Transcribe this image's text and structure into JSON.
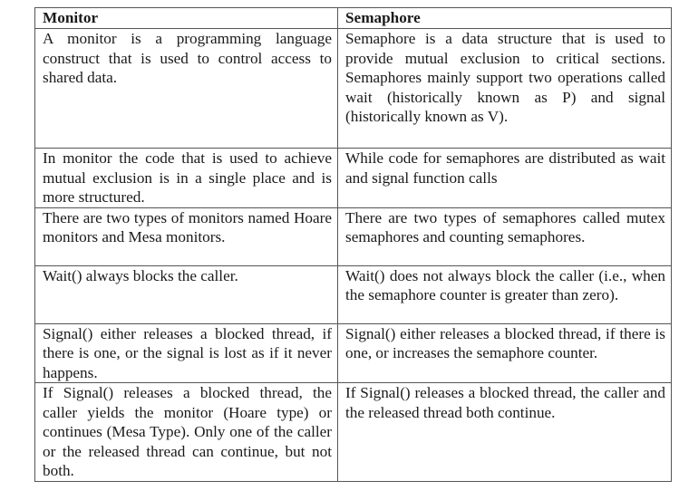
{
  "table": {
    "headers": [
      "Monitor",
      "Semaphore"
    ],
    "rows": [
      {
        "monitor": "A monitor is a programming language construct that is used to control access to shared data.",
        "semaphore": "Semaphore is a data structure that is used to provide mutual exclusion to critical sections. Semaphores mainly support two operations called wait (historically known as P) and signal (historically known as V)."
      },
      {
        "monitor": "In monitor the code that is used to achieve mutual exclusion is in a single place and is more structured.",
        "semaphore": "While code for semaphores are distributed as wait and signal function calls"
      },
      {
        "monitor": "There are two types of monitors named Hoare monitors and Mesa monitors.",
        "semaphore": "There are two types of semaphores called mutex semaphores and counting semaphores."
      },
      {
        "monitor": "Wait() always blocks the caller.",
        "semaphore": "Wait() does not always block the caller (i.e., when the semaphore counter is greater than zero)."
      },
      {
        "monitor": "Signal() either releases a blocked thread, if there is one, or the signal is lost as if it never happens.",
        "semaphore": "Signal() either releases a blocked thread, if there is one, or increases the semaphore counter."
      },
      {
        "monitor": "If Signal() releases a blocked thread, the caller yields the monitor (Hoare type) or continues (Mesa Type). Only one of the caller or the released thread can continue, but not both.",
        "semaphore": "If Signal() releases a blocked thread, the caller and the released thread both continue."
      }
    ]
  }
}
